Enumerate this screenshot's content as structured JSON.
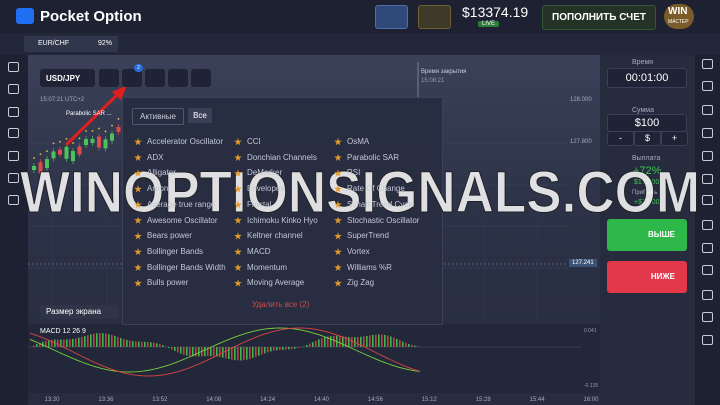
{
  "header": {
    "logo": "Pocket Option",
    "balance": "$13374.19",
    "account_type": "LIVE",
    "deposit_button": "ПОПОЛНИТЬ СЧЕТ",
    "level": "WIN",
    "level_name": "МАСТЕР"
  },
  "tab": {
    "asset": "EUR/CHF",
    "payout": "92%"
  },
  "chart": {
    "asset": "USD/JPY",
    "indicator_count": "2",
    "time": "15:07:21 UTC+2",
    "indicator_label": "Parabolic SAR ...",
    "close_time_label": "Время закрытия",
    "close_time": "15:08:21",
    "price_labels": [
      "128.000",
      "127.800"
    ],
    "current_price": "127.241",
    "screen_size": "Размер экрана",
    "macd_label": "MACD 12 26 9",
    "macd_labels": [
      "0.041",
      "-0.135"
    ],
    "time_labels": [
      "13:20",
      "13:36",
      "13:52",
      "14:08",
      "14:24",
      "14:40",
      "14:56",
      "15:12",
      "15:28",
      "15:44",
      "16:00"
    ]
  },
  "indicators_panel": {
    "tabs": [
      "Активные",
      "Все"
    ],
    "columns": [
      [
        "Accelerator Oscillator",
        "ADX",
        "Alligator",
        "Aroon",
        "Average true range",
        "Awesome Oscillator",
        "Bears power",
        "Bollinger Bands",
        "Bollinger Bands Width",
        "Bulls power"
      ],
      [
        "CCI",
        "Donchian Channels",
        "DeMarker",
        "Envelopes",
        "Fractal",
        "Ichimoku Kinko Hyo",
        "Keltner channel",
        "MACD",
        "Momentum",
        "Moving Average"
      ],
      [
        "OsMA",
        "Parabolic SAR",
        "RSI",
        "Rate Of Change",
        "Schaff Trend Cycle",
        "Stochastic Oscillator",
        "SuperTrend",
        "Vortex",
        "Williams %R",
        "Zig Zag"
      ]
    ],
    "remove_all": "Удалить все (2)"
  },
  "trade_panel": {
    "time_label": "Время",
    "time_value": "00:01:00",
    "amount_label": "Сумма",
    "amount_value": "$100",
    "amount_buttons": [
      "-",
      "$",
      "+"
    ],
    "payout_label": "Выплата",
    "payout_percent": "+72%",
    "payout_amount": "$172.00",
    "profit_label": "Прибыль",
    "profit_amount": "+$72.00",
    "up_button": "ВЫШЕ",
    "down_button": "НИЖЕ"
  },
  "watermark": "WINOPTIONSIGNALS.COM"
}
